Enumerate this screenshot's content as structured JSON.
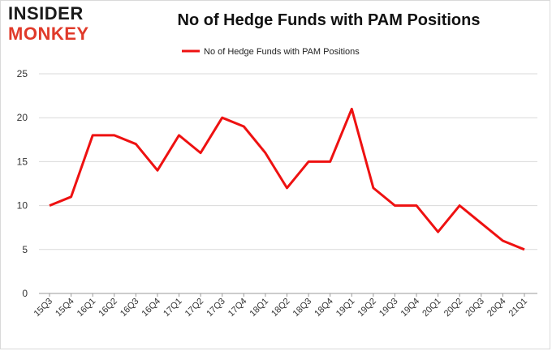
{
  "logo": {
    "line1": "INSIDER",
    "line2": "MONKEY"
  },
  "colors": {
    "series": "#ee1111",
    "grid": "#d9d9d9",
    "axis": "#999999"
  },
  "chart_data": {
    "type": "line",
    "title": "No of Hedge Funds with PAM Positions",
    "categories": [
      "15Q3",
      "15Q4",
      "16Q1",
      "16Q2",
      "16Q3",
      "16Q4",
      "17Q1",
      "17Q2",
      "17Q3",
      "17Q4",
      "18Q1",
      "18Q2",
      "18Q3",
      "18Q4",
      "19Q1",
      "19Q2",
      "19Q3",
      "19Q4",
      "20Q1",
      "20Q2",
      "20Q3",
      "20Q4",
      "21Q1"
    ],
    "series": [
      {
        "name": "No of Hedge Funds with PAM Positions",
        "values": [
          10,
          11,
          18,
          18,
          17,
          14,
          18,
          16,
          20,
          19,
          16,
          12,
          15,
          15,
          21,
          12,
          10,
          10,
          7,
          10,
          8,
          6,
          5
        ]
      }
    ],
    "ylim": [
      0,
      25
    ],
    "yticks": [
      0,
      5,
      10,
      15,
      20,
      25
    ],
    "grid": true,
    "legend": "top-center"
  }
}
